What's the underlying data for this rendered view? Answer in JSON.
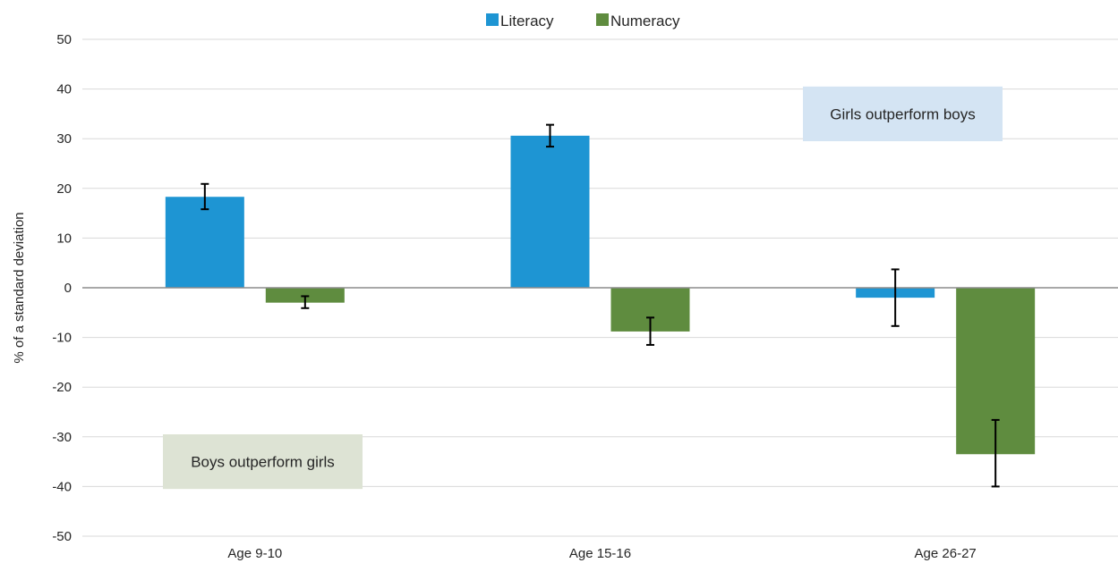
{
  "chart_data": {
    "type": "bar",
    "title": "",
    "xlabel": "",
    "ylabel": "% of a standard deviation",
    "ylim": [
      -50,
      50
    ],
    "yticks": [
      50,
      40,
      30,
      20,
      10,
      0,
      -10,
      -20,
      -30,
      -40,
      -50
    ],
    "grid": true,
    "legend_position": "top-center",
    "categories": [
      "Age 9-10",
      "Age 15-16",
      "Age 26-27"
    ],
    "series": [
      {
        "name": "Literacy",
        "color": "#1e95d3",
        "values": [
          18.3,
          30.6,
          -2.0
        ],
        "error_low": [
          15.8,
          28.4,
          -7.7
        ],
        "error_high": [
          20.9,
          32.8,
          3.7
        ]
      },
      {
        "name": "Numeracy",
        "color": "#5f8c3f",
        "values": [
          -3.0,
          -8.8,
          -33.5
        ],
        "error_low": [
          -4.1,
          -11.5,
          -40.0
        ],
        "error_high": [
          -1.7,
          -6.0,
          -26.6
        ]
      }
    ],
    "annotations": [
      {
        "text": "Girls outperform boys",
        "color": "#d4e4f3"
      },
      {
        "text": "Boys outperform girls",
        "color": "#dde3d4"
      }
    ]
  }
}
